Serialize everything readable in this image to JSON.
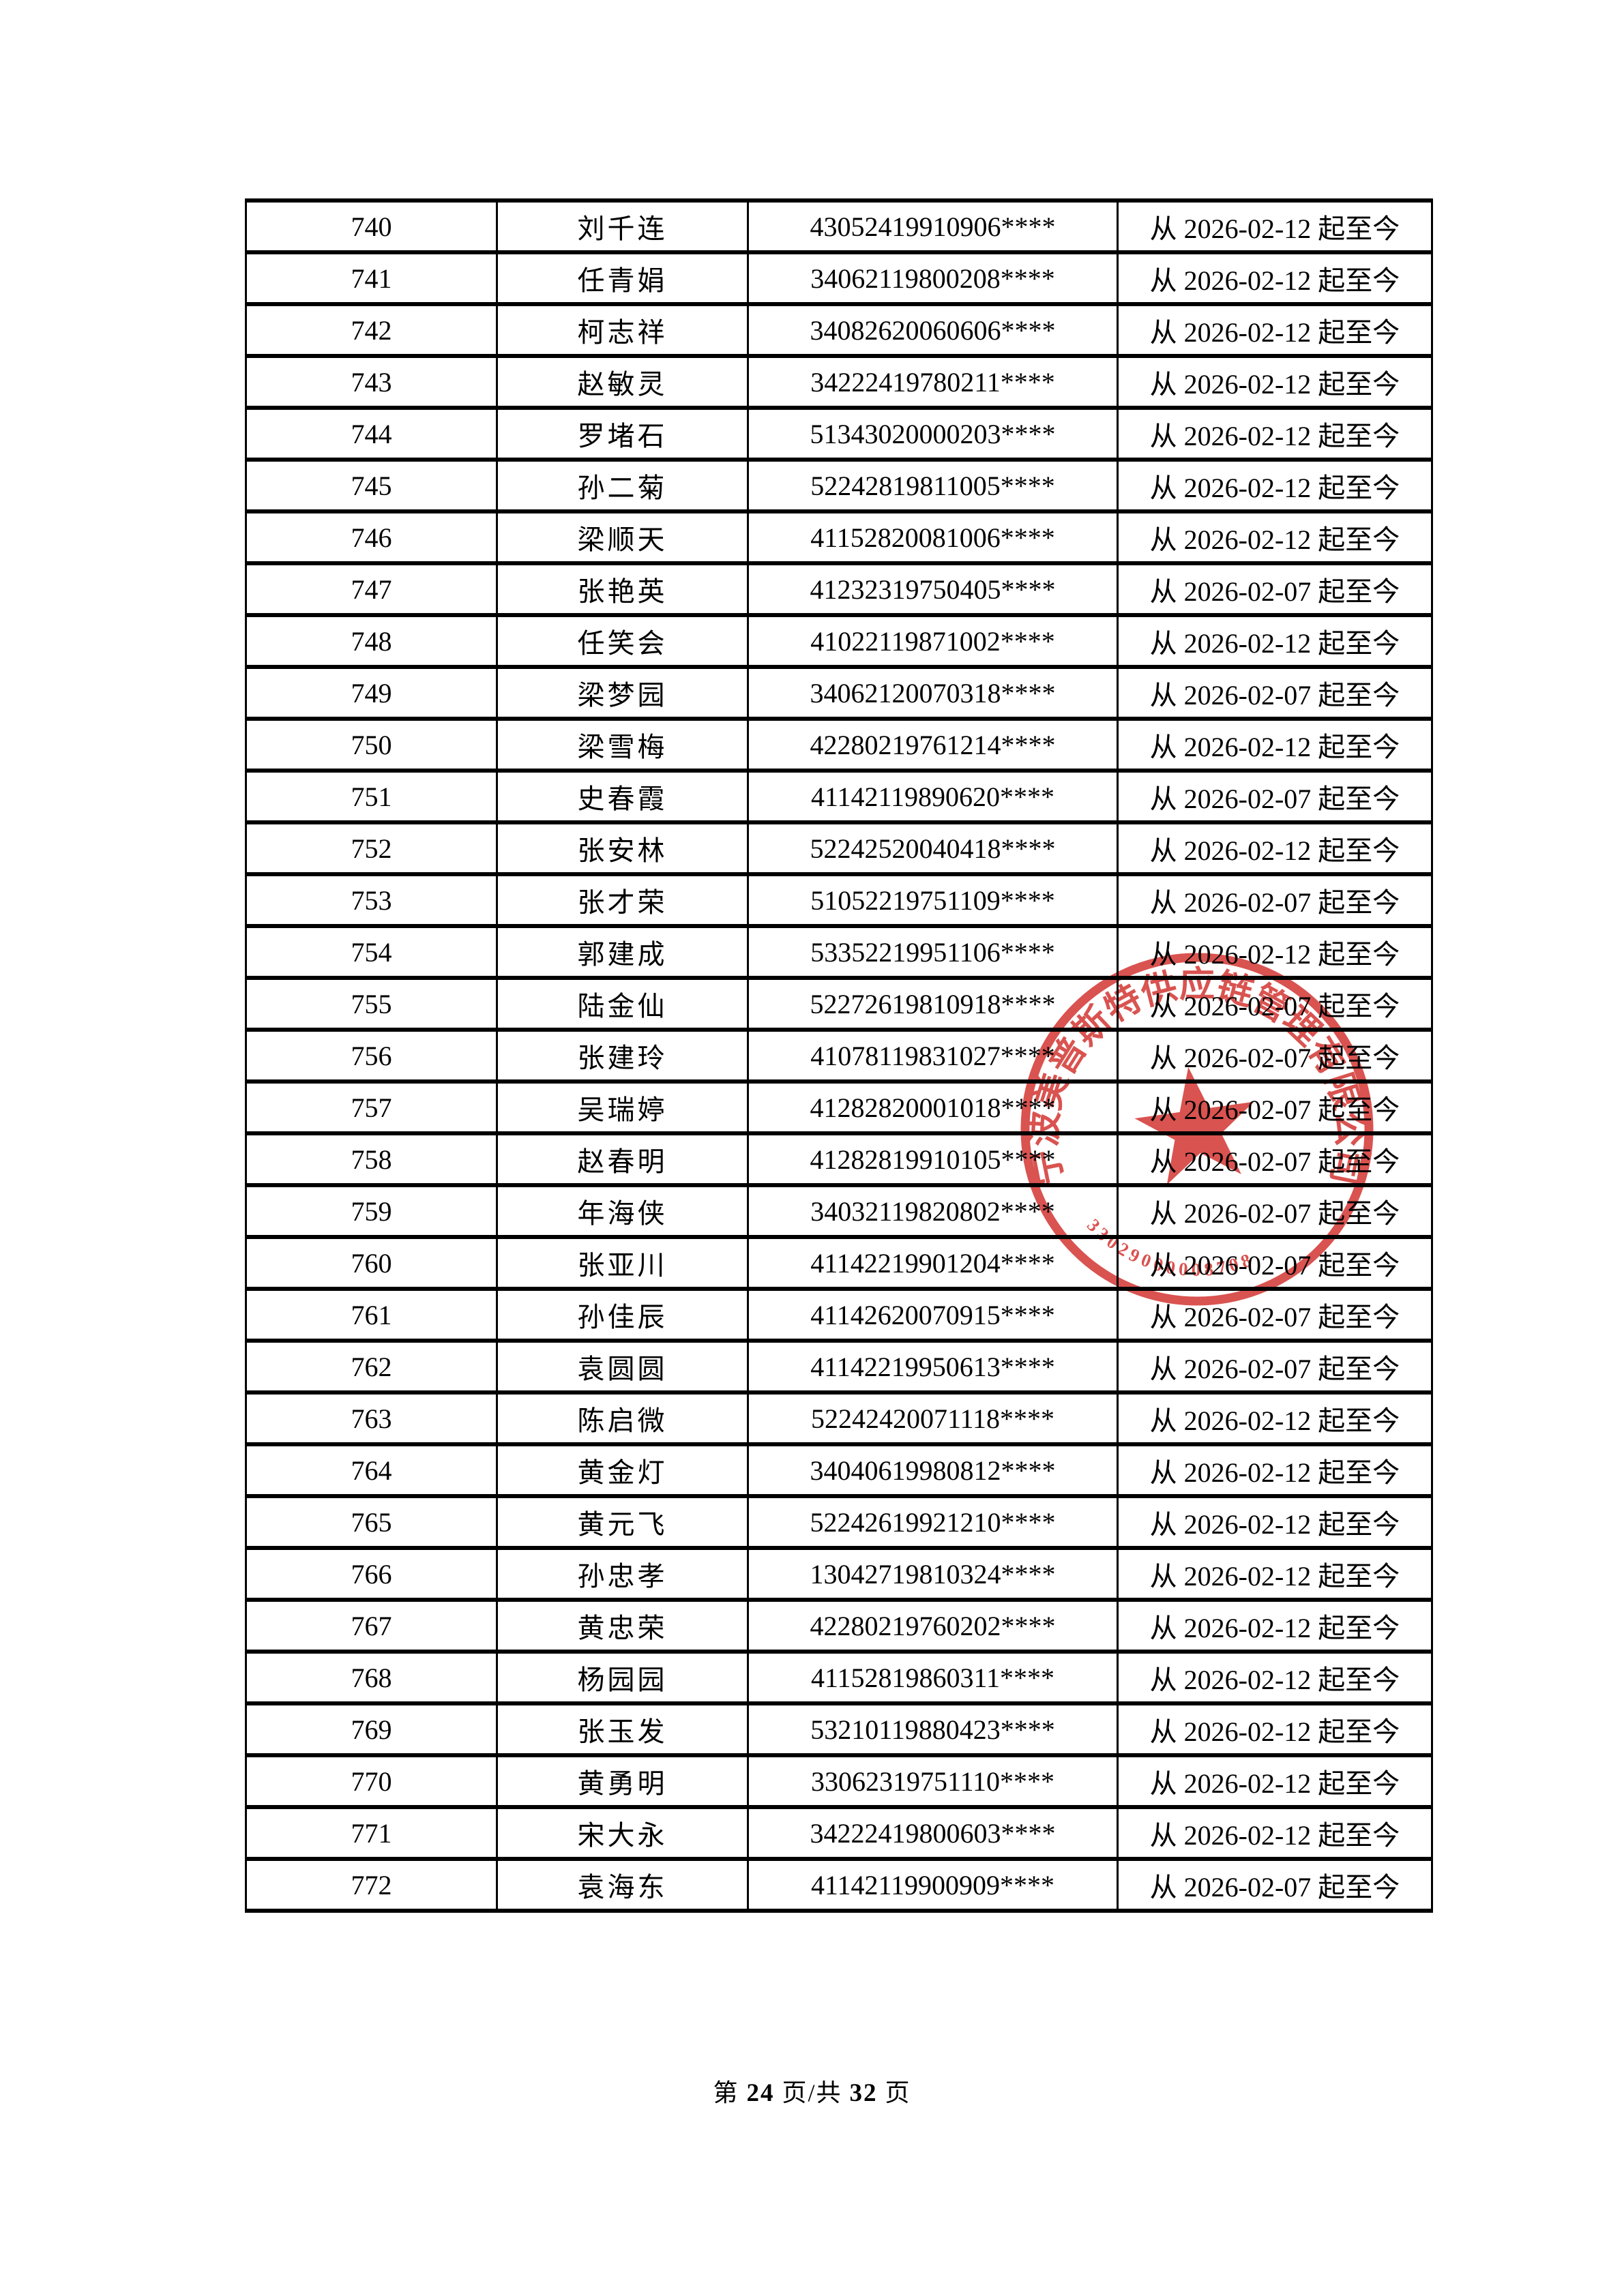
{
  "page": {
    "background": "#ffffff",
    "border_color": "#000000"
  },
  "footer": {
    "prefix": "第",
    "current_page": "24",
    "middle": "页/共",
    "total_pages": "32",
    "suffix": "页"
  },
  "stamp": {
    "shape": "circular-red-seal",
    "ink_color": "#d5403d",
    "arc_text": "宁波美普斯特供应链管理有限公司",
    "serial_number": "33029000008708",
    "center_symbol": "five-pointed-star"
  },
  "table": {
    "columns": [
      "sequence",
      "name",
      "id_number",
      "valid_period"
    ],
    "rows": [
      {
        "seq": "740",
        "name": "刘千连",
        "id": "43052419910906****",
        "period": "从 2026-02-12 起至今"
      },
      {
        "seq": "741",
        "name": "任青娟",
        "id": "34062119800208****",
        "period": "从 2026-02-12 起至今"
      },
      {
        "seq": "742",
        "name": "柯志祥",
        "id": "34082620060606****",
        "period": "从 2026-02-12 起至今"
      },
      {
        "seq": "743",
        "name": "赵敏灵",
        "id": "34222419780211****",
        "period": "从 2026-02-12 起至今"
      },
      {
        "seq": "744",
        "name": "罗堵石",
        "id": "51343020000203****",
        "period": "从 2026-02-12 起至今"
      },
      {
        "seq": "745",
        "name": "孙二菊",
        "id": "52242819811005****",
        "period": "从 2026-02-12 起至今"
      },
      {
        "seq": "746",
        "name": "梁顺天",
        "id": "41152820081006****",
        "period": "从 2026-02-12 起至今"
      },
      {
        "seq": "747",
        "name": "张艳英",
        "id": "41232319750405****",
        "period": "从 2026-02-07 起至今"
      },
      {
        "seq": "748",
        "name": "任笑会",
        "id": "41022119871002****",
        "period": "从 2026-02-12 起至今"
      },
      {
        "seq": "749",
        "name": "梁梦园",
        "id": "34062120070318****",
        "period": "从 2026-02-07 起至今"
      },
      {
        "seq": "750",
        "name": "梁雪梅",
        "id": "42280219761214****",
        "period": "从 2026-02-12 起至今"
      },
      {
        "seq": "751",
        "name": "史春霞",
        "id": "41142119890620****",
        "period": "从 2026-02-07 起至今"
      },
      {
        "seq": "752",
        "name": "张安林",
        "id": "52242520040418****",
        "period": "从 2026-02-12 起至今"
      },
      {
        "seq": "753",
        "name": "张才荣",
        "id": "51052219751109****",
        "period": "从 2026-02-07 起至今"
      },
      {
        "seq": "754",
        "name": "郭建成",
        "id": "53352219951106****",
        "period": "从 2026-02-12 起至今"
      },
      {
        "seq": "755",
        "name": "陆金仙",
        "id": "52272619810918****",
        "period": "从 2026-02-07 起至今"
      },
      {
        "seq": "756",
        "name": "张建玲",
        "id": "41078119831027****",
        "period": "从 2026-02-07 起至今"
      },
      {
        "seq": "757",
        "name": "吴瑞婷",
        "id": "41282820001018****",
        "period": "从 2026-02-07 起至今"
      },
      {
        "seq": "758",
        "name": "赵春明",
        "id": "41282819910105****",
        "period": "从 2026-02-07 起至今"
      },
      {
        "seq": "759",
        "name": "年海侠",
        "id": "34032119820802****",
        "period": "从 2026-02-07 起至今"
      },
      {
        "seq": "760",
        "name": "张亚川",
        "id": "41142219901204****",
        "period": "从 2026-02-07 起至今"
      },
      {
        "seq": "761",
        "name": "孙佳辰",
        "id": "41142620070915****",
        "period": "从 2026-02-07 起至今"
      },
      {
        "seq": "762",
        "name": "袁圆圆",
        "id": "41142219950613****",
        "period": "从 2026-02-07 起至今"
      },
      {
        "seq": "763",
        "name": "陈启微",
        "id": "52242420071118****",
        "period": "从 2026-02-12 起至今"
      },
      {
        "seq": "764",
        "name": "黄金灯",
        "id": "34040619980812****",
        "period": "从 2026-02-12 起至今"
      },
      {
        "seq": "765",
        "name": "黄元飞",
        "id": "52242619921210****",
        "period": "从 2026-02-12 起至今"
      },
      {
        "seq": "766",
        "name": "孙忠孝",
        "id": "13042719810324****",
        "period": "从 2026-02-12 起至今"
      },
      {
        "seq": "767",
        "name": "黄忠荣",
        "id": "42280219760202****",
        "period": "从 2026-02-12 起至今"
      },
      {
        "seq": "768",
        "name": "杨园园",
        "id": "41152819860311****",
        "period": "从 2026-02-12 起至今"
      },
      {
        "seq": "769",
        "name": "张玉发",
        "id": "53210119880423****",
        "period": "从 2026-02-12 起至今"
      },
      {
        "seq": "770",
        "name": "黄勇明",
        "id": "33062319751110****",
        "period": "从 2026-02-12 起至今"
      },
      {
        "seq": "771",
        "name": "宋大永",
        "id": "34222419800603****",
        "period": "从 2026-02-12 起至今"
      },
      {
        "seq": "772",
        "name": "袁海东",
        "id": "41142119900909****",
        "period": "从 2026-02-07 起至今"
      }
    ]
  }
}
